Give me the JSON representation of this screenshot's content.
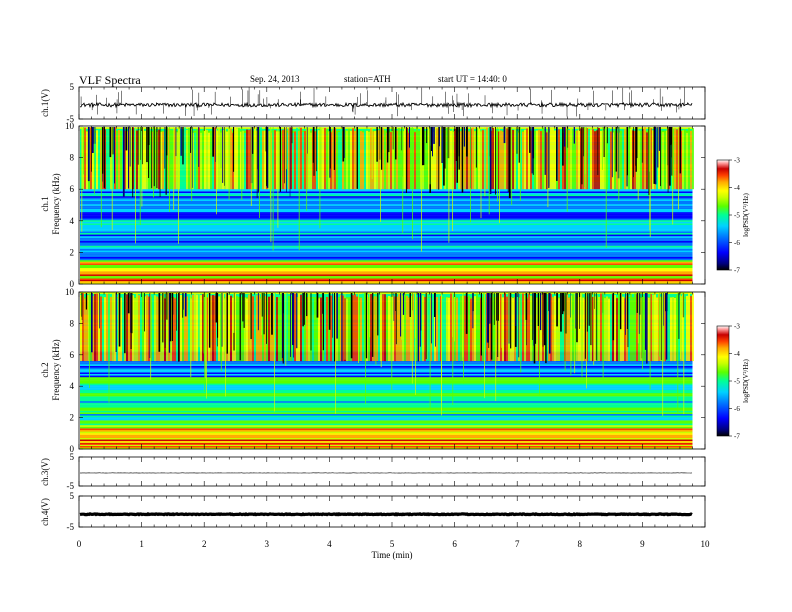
{
  "header": {
    "title": "VLF Spectra",
    "date": "Sep. 24, 2013",
    "station": "station=ATH",
    "start_ut": "start UT =  14:40: 0"
  },
  "colors": {
    "spectrogram_scale": [
      "#000000",
      "#000080",
      "#0000ff",
      "#0078ff",
      "#00d2ff",
      "#00ff96",
      "#5aff00",
      "#c8ff00",
      "#ffff00",
      "#ffaa00",
      "#ff4000",
      "#c80000",
      "#ff9999",
      "#ffffff"
    ],
    "trace": "#000000",
    "axis": "#000000"
  },
  "chart_data": [
    {
      "type": "line",
      "panel": "ch1-waveform",
      "ylabel": "ch.1(V)",
      "ylim": [
        -5,
        5
      ],
      "y_ticks": [
        "5",
        "-5"
      ],
      "xlim": [
        0,
        10
      ],
      "baseline": -0.6,
      "noise_amplitude": 0.6,
      "trace_end_min": 9.8
    },
    {
      "type": "heatmap",
      "panel": "ch1-spectrogram",
      "ylabel_channel": "ch.1",
      "ylabel": "Frequency (kHz)",
      "ylim": [
        0,
        10
      ],
      "y_ticks": [
        "0",
        "2",
        "4",
        "6",
        "8",
        "10"
      ],
      "xlim": [
        0,
        10
      ],
      "trace_end_min": 9.8,
      "colorbar": {
        "label": "logPSD(V²/Hz)",
        "range": [
          -7,
          -3
        ],
        "ticks": [
          "-3",
          "-4",
          "-5",
          "-6",
          "-7"
        ]
      }
    },
    {
      "type": "heatmap",
      "panel": "ch2-spectrogram",
      "ylabel_channel": "ch.2",
      "ylabel": "Frequency (kHz)",
      "ylim": [
        0,
        10
      ],
      "y_ticks": [
        "0",
        "2",
        "4",
        "6",
        "8",
        "10"
      ],
      "xlim": [
        0,
        10
      ],
      "trace_end_min": 9.8,
      "colorbar": {
        "label": "logPSD(V²/Hz)",
        "range": [
          -7,
          -3
        ],
        "ticks": [
          "-3",
          "-4",
          "-5",
          "-6",
          "-7"
        ]
      }
    },
    {
      "type": "line",
      "panel": "ch3-waveform",
      "ylabel": "ch.3(V)",
      "ylim": [
        -5,
        5
      ],
      "y_ticks": [
        "5",
        "-5"
      ],
      "xlim": [
        0,
        10
      ],
      "baseline": -0.5,
      "noise_amplitude": 0.05,
      "trace_end_min": 9.8
    },
    {
      "type": "line",
      "panel": "ch4-waveform",
      "ylabel": "ch.4(V)",
      "ylim": [
        -5,
        5
      ],
      "y_ticks": [
        "5",
        "-5"
      ],
      "xlim": [
        0,
        10
      ],
      "baseline": -0.9,
      "noise_amplitude": 0.12,
      "trace_end_min": 9.8
    }
  ],
  "x_axis": {
    "label": "Time (min)",
    "ticks": [
      "0",
      "1",
      "2",
      "3",
      "4",
      "5",
      "6",
      "7",
      "8",
      "9",
      "10"
    ]
  }
}
